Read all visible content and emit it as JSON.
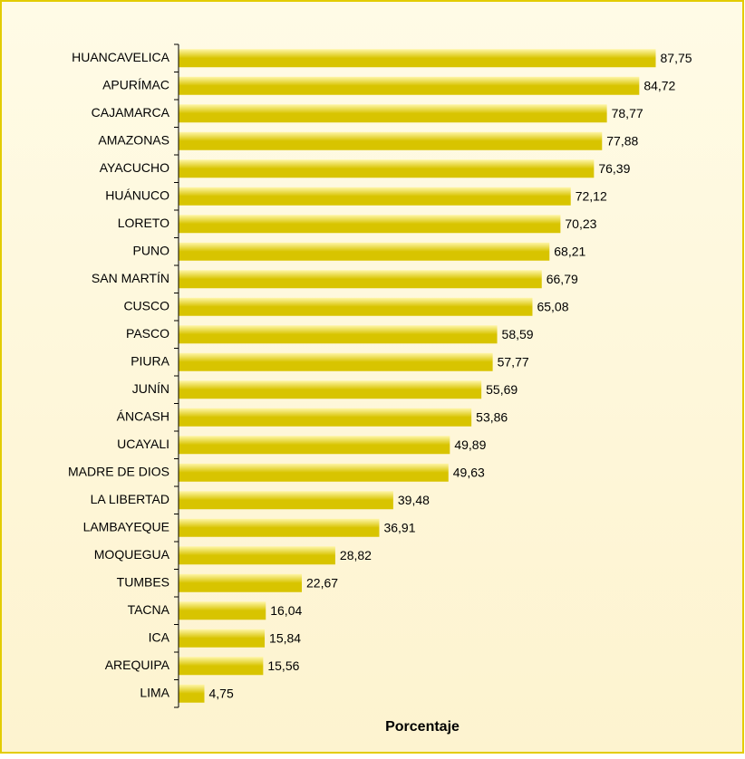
{
  "chart_data": {
    "type": "bar",
    "orientation": "horizontal",
    "xlabel": "Porcentaje",
    "categories": [
      "HUANCAVELICA",
      "APURÍMAC",
      "CAJAMARCA",
      "AMAZONAS",
      "AYACUCHO",
      "HUÁNUCO",
      "LORETO",
      "PUNO",
      "SAN MARTÍN",
      "CUSCO",
      "PASCO",
      "PIURA",
      "JUNÍN",
      "ÁNCASH",
      "UCAYALI",
      "MADRE DE DIOS",
      "LA LIBERTAD",
      "LAMBAYEQUE",
      "MOQUEGUA",
      "TUMBES",
      "TACNA",
      "ICA",
      "AREQUIPA",
      "LIMA"
    ],
    "values": [
      87.75,
      84.72,
      78.77,
      77.88,
      76.39,
      72.12,
      70.23,
      68.21,
      66.79,
      65.08,
      58.59,
      57.77,
      55.69,
      53.86,
      49.89,
      49.63,
      39.48,
      36.91,
      28.82,
      22.67,
      16.04,
      15.84,
      15.56,
      4.75
    ],
    "value_labels": [
      "87,75",
      "84,72",
      "78,77",
      "77,88",
      "76,39",
      "72,12",
      "70,23",
      "68,21",
      "66,79",
      "65,08",
      "58,59",
      "57,77",
      "55,69",
      "53,86",
      "49,89",
      "49,63",
      "39,48",
      "36,91",
      "28,82",
      "22,67",
      "16,04",
      "15,84",
      "15,56",
      "4,75"
    ],
    "color": "#d8c400",
    "xlim": [
      0,
      100
    ]
  }
}
